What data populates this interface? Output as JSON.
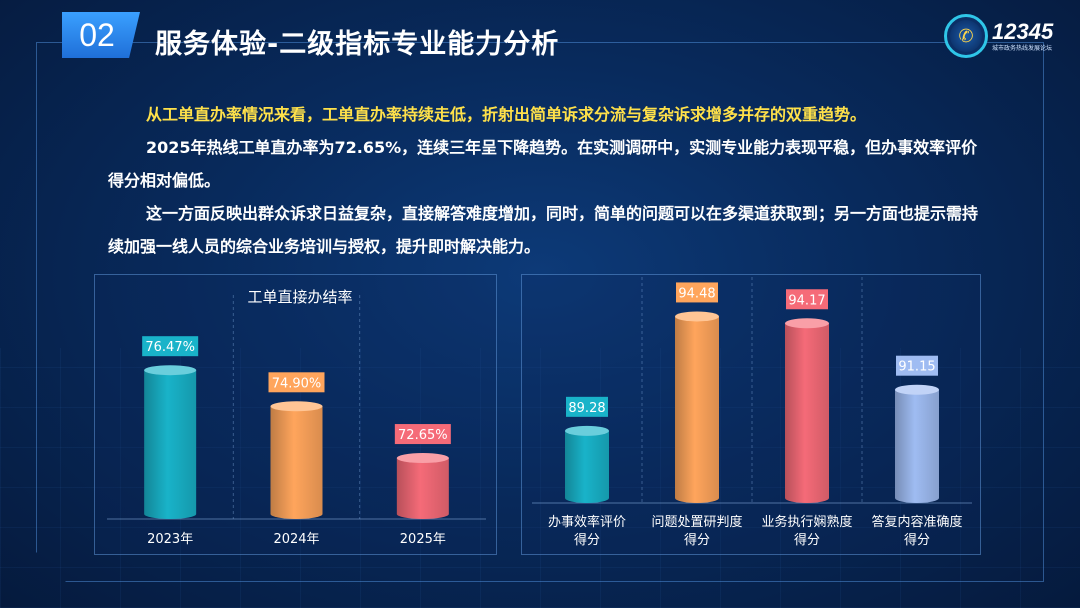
{
  "header": {
    "section_number": "02",
    "title": "服务体验-二级指标专业能力分析"
  },
  "logo": {
    "main": "12345",
    "sub": "城市政务热线发展论坛",
    "icon": "hotline-logo-icon"
  },
  "text": {
    "highlight": "从工单直办率情况来看，工单直办率持续走低，折射出简单诉求分流与复杂诉求增多并存的双重趋势。",
    "paragraphs": [
      "2025年热线工单直办率为72.65%，连续三年呈下降趋势。在实测调研中，实测专业能力表现平稳，但办事效率评价得分相对偏低。",
      "这一方面反映出群众诉求日益复杂，直接解答难度增加，同时，简单的问题可以在多渠道获取到；另一方面也提示需持续加强一线人员的综合业务培训与授权，提升即时解决能力。"
    ]
  },
  "chart_data": [
    {
      "type": "bar",
      "title": "工单直接办结率",
      "categories": [
        "2023年",
        "2024年",
        "2025年"
      ],
      "values": [
        76.47,
        74.9,
        72.65
      ],
      "labels": [
        "76.47%",
        "74.90%",
        "72.65%"
      ],
      "colors": [
        "#19b3c9",
        "#ffa55c",
        "#f56b78"
      ],
      "ylim": [
        70,
        78
      ],
      "grid": "vertical-dashed"
    },
    {
      "type": "bar",
      "title": "",
      "categories": [
        [
          "办事效率评价",
          "得分"
        ],
        [
          "问题处置研判度",
          "得分"
        ],
        [
          "业务执行娴熟度",
          "得分"
        ],
        [
          "答复内容准确度",
          "得分"
        ]
      ],
      "values": [
        89.28,
        94.48,
        94.17,
        91.15
      ],
      "labels": [
        "89.28",
        "94.48",
        "94.17",
        "91.15"
      ],
      "colors": [
        "#19b3c9",
        "#ffa55c",
        "#f56b78",
        "#9fbcf2"
      ],
      "ylim": [
        86,
        95
      ],
      "grid": "vertical-dashed"
    }
  ]
}
